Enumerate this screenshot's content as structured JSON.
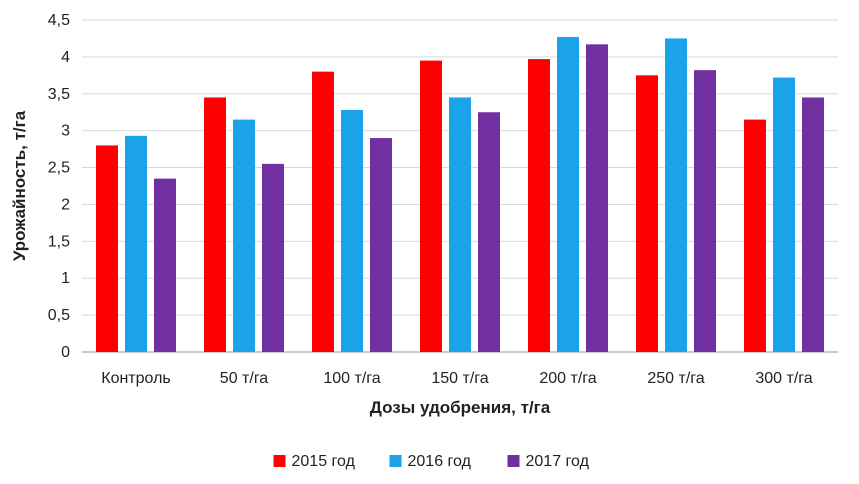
{
  "chart_data": {
    "type": "bar",
    "title": "",
    "xlabel": "Дозы удобрения, т/га",
    "ylabel": "Урожайность, т/га",
    "ylim": [
      0,
      4.5
    ],
    "yticks": [
      "0",
      "0,5",
      "1",
      "1,5",
      "2",
      "2,5",
      "3",
      "3,5",
      "4",
      "4,5"
    ],
    "categories": [
      "Контроль",
      "50 т/га",
      "100 т/га",
      "150 т/га",
      "200 т/га",
      "250 т/га",
      "300 т/га"
    ],
    "series": [
      {
        "name": "2015 год",
        "color": "#ff0000",
        "values": [
          2.8,
          3.45,
          3.8,
          3.95,
          3.97,
          3.75,
          3.15
        ]
      },
      {
        "name": "2016 год",
        "color": "#1aa3e8",
        "values": [
          2.93,
          3.15,
          3.28,
          3.45,
          4.27,
          4.25,
          3.72
        ]
      },
      {
        "name": "2017 год",
        "color": "#7030a0",
        "values": [
          2.35,
          2.55,
          2.9,
          3.25,
          4.17,
          3.82,
          3.45
        ]
      }
    ],
    "grid": true,
    "legend_position": "bottom"
  }
}
